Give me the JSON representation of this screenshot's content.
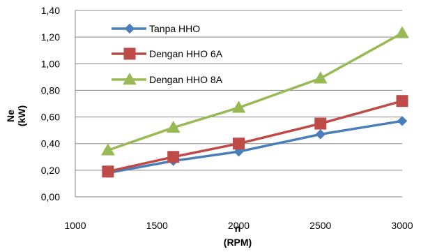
{
  "chart_data": {
    "type": "line",
    "x": [
      1200,
      1600,
      2000,
      2500,
      3000
    ],
    "series": [
      {
        "name": "Tanpa HHO",
        "values": [
          0.18,
          0.27,
          0.34,
          0.47,
          0.57
        ],
        "color": "#4a7ebb",
        "marker": "diamond"
      },
      {
        "name": "Dengan HHO 6A",
        "values": [
          0.19,
          0.3,
          0.4,
          0.55,
          0.72
        ],
        "color": "#be4b48",
        "marker": "square"
      },
      {
        "name": "Dengan HHO 8A",
        "values": [
          0.35,
          0.52,
          0.67,
          0.89,
          1.23
        ],
        "color": "#98b954",
        "marker": "triangle"
      }
    ],
    "xlim": [
      1000,
      3000
    ],
    "ylim": [
      0,
      1.4
    ],
    "x_ticks": [
      "1000",
      "1500",
      "2000",
      "2500",
      "3000"
    ],
    "y_ticks": [
      "0,00",
      "0,20",
      "0,40",
      "0,60",
      "0,80",
      "1,00",
      "1,20",
      "1,40"
    ],
    "xlabel_line1": "n",
    "xlabel_line2": "(RPM)",
    "ylabel_line1": "Ne",
    "ylabel_line2": "(kW)",
    "grid": true,
    "legend_position": "top-left"
  }
}
